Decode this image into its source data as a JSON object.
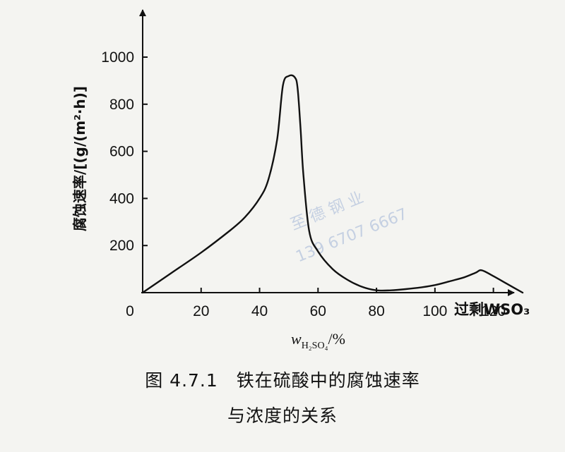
{
  "chart_data": {
    "type": "line",
    "ylabel": "腐蚀速率/[(g/(m²·h)]",
    "xlabel_main": "w",
    "xlabel_sub": "H₂SO₄",
    "xlabel_unit": "/%",
    "x_extra_label": "过剩WSO₃",
    "xlim": [
      0,
      130
    ],
    "ylim": [
      0,
      1000
    ],
    "x_ticks": [
      0,
      20,
      40,
      60,
      80,
      100,
      120
    ],
    "y_ticks": [
      200,
      400,
      600,
      800,
      1000
    ],
    "series": [
      {
        "x": [
          0,
          10,
          20,
          30,
          35,
          40,
          43,
          46,
          48,
          50,
          52,
          53,
          54,
          55,
          57,
          60,
          65,
          70,
          75,
          80,
          85,
          90,
          95,
          100,
          105,
          110,
          114,
          116,
          120,
          125,
          130
        ],
        "y": [
          0,
          85,
          170,
          265,
          320,
          400,
          480,
          650,
          880,
          920,
          915,
          870,
          700,
          500,
          260,
          175,
          100,
          55,
          25,
          10,
          10,
          15,
          22,
          32,
          48,
          65,
          85,
          95,
          70,
          35,
          0
        ]
      }
    ]
  },
  "watermark": {
    "line1": "至 德 钢 业",
    "line2": "139 6707 6667",
    "color": "#9fb3d6"
  },
  "caption": {
    "line1": "图 4.7.1　铁在硫酸中的腐蚀速率",
    "line2": "与浓度的关系"
  }
}
